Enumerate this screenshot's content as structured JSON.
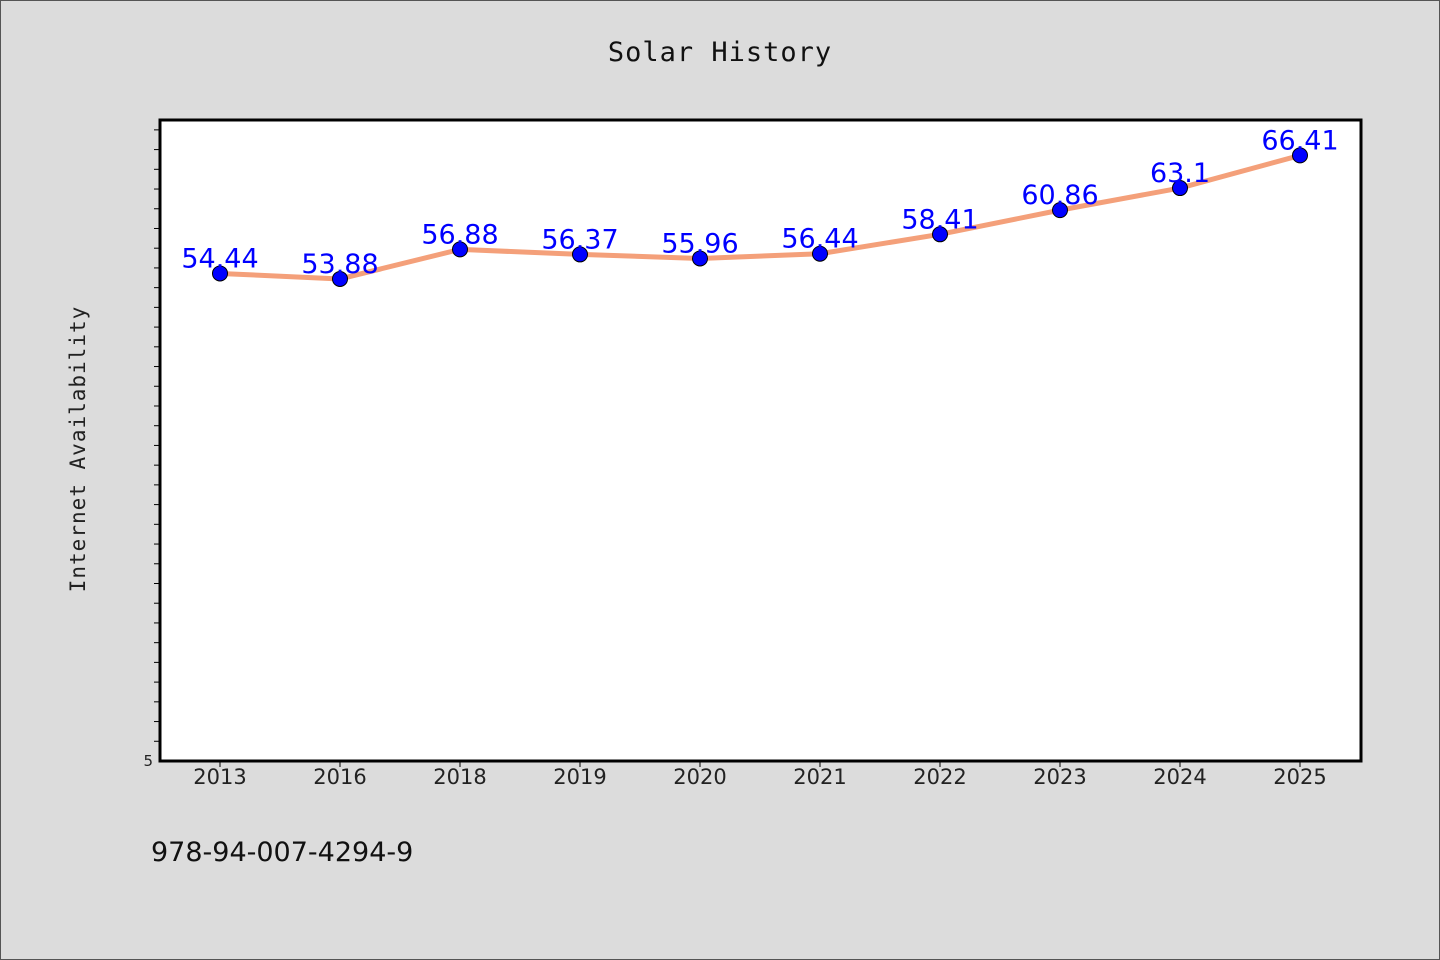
{
  "chart_data": {
    "type": "line",
    "title": "Solar History",
    "xlabel": "",
    "ylabel": "Internet Availability",
    "categories": [
      "2013",
      "2016",
      "2018",
      "2019",
      "2020",
      "2021",
      "2022",
      "2023",
      "2024",
      "2025"
    ],
    "series": [
      {
        "values": [
          54.44,
          53.88,
          56.88,
          56.37,
          55.96,
          56.44,
          58.41,
          60.86,
          63.1,
          66.41
        ],
        "labels": [
          "54.44",
          "53.88",
          "56.88",
          "56.37",
          "55.96",
          "56.44",
          "58.41",
          "60.86",
          "63.1",
          "66.41"
        ]
      }
    ],
    "ylim": [
      5,
      70
    ],
    "y_tick_labels": [
      "5"
    ],
    "grid": false,
    "colors": {
      "line": "#f4a07a",
      "marker": "#0000ff",
      "data_label": "#0000ff",
      "plot_background": "#ffffff",
      "figure_background": "#dcdcdc"
    }
  },
  "footnote": "978-94-007-4294-9"
}
